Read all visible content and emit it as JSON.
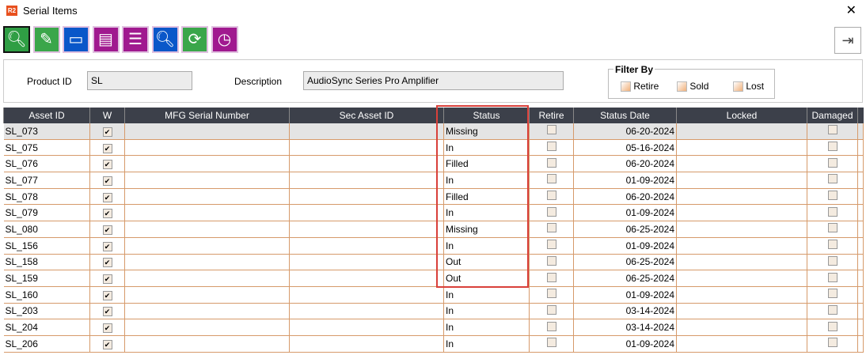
{
  "window": {
    "title": "Serial Items",
    "logo": "R2"
  },
  "toolbar": [
    {
      "icon": "search-icon",
      "color": "#2f9e44"
    },
    {
      "icon": "pencil-icon",
      "color": "#3aa64a"
    },
    {
      "icon": "battery-icon",
      "color": "#0a57c9"
    },
    {
      "icon": "report-hourglass-icon",
      "color": "#a0198f"
    },
    {
      "icon": "list-hourglass-icon",
      "color": "#a0198f"
    },
    {
      "icon": "search-icon",
      "color": "#0a57c9"
    },
    {
      "icon": "refresh-icon",
      "color": "#3aa64a"
    },
    {
      "icon": "clock-icon",
      "color": "#a0198f"
    }
  ],
  "form": {
    "product_id_label": "Product ID",
    "product_id": "SL",
    "description_label": "Description",
    "description": "AudioSync Series Pro Amplifier",
    "filter_label": "Filter By",
    "filters": [
      "Retire",
      "Sold",
      "Lost"
    ]
  },
  "table": {
    "columns": [
      "Asset ID",
      "W",
      "MFG Serial Number",
      "Sec Asset ID",
      "Status",
      "Retire",
      "Status Date",
      "Locked",
      "Damaged"
    ],
    "rows": [
      [
        "SL_073",
        "Missing",
        "06-20-2024"
      ],
      [
        "SL_075",
        "In",
        "05-16-2024"
      ],
      [
        "SL_076",
        "Filled",
        "06-20-2024"
      ],
      [
        "SL_077",
        "In",
        "01-09-2024"
      ],
      [
        "SL_078",
        "Filled",
        "06-20-2024"
      ],
      [
        "SL_079",
        "In",
        "01-09-2024"
      ],
      [
        "SL_080",
        "Missing",
        "06-25-2024"
      ],
      [
        "SL_156",
        "In",
        "01-09-2024"
      ],
      [
        "SL_158",
        "Out",
        "06-25-2024"
      ],
      [
        "SL_159",
        "Out",
        "06-25-2024"
      ],
      [
        "SL_160",
        "In",
        "01-09-2024"
      ],
      [
        "SL_203",
        "In",
        "03-14-2024"
      ],
      [
        "SL_204",
        "In",
        "03-14-2024"
      ],
      [
        "SL_206",
        "In",
        "01-09-2024"
      ]
    ]
  }
}
